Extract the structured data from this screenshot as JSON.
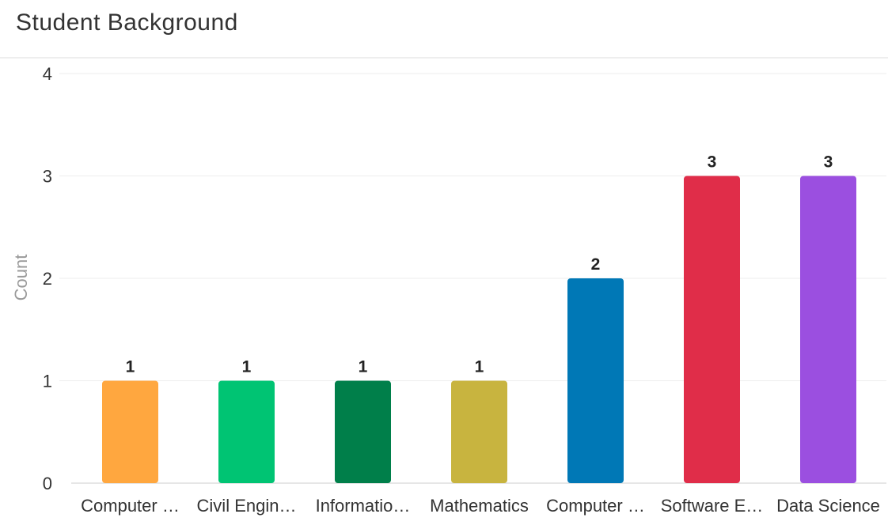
{
  "header": {
    "title": "Student Background"
  },
  "chart_data": {
    "type": "bar",
    "title": "Student Background",
    "xlabel": "",
    "ylabel": "Count",
    "ylim": [
      0,
      4
    ],
    "yticks": [
      0,
      1,
      2,
      3,
      4
    ],
    "grid": true,
    "legend": "none",
    "categories": [
      "Computer …",
      "Civil Engin…",
      "Informatio…",
      "Mathematics",
      "Computer …",
      "Software E…",
      "Data Science"
    ],
    "values": [
      1,
      1,
      1,
      1,
      2,
      3,
      3
    ],
    "data_labels": [
      "1",
      "1",
      "1",
      "1",
      "2",
      "3",
      "3"
    ],
    "colors": [
      "#FFA73F",
      "#00C473",
      "#007F4A",
      "#C8B43F",
      "#0078B6",
      "#E02D49",
      "#9B4FE0"
    ],
    "grid_color": "#eeeeee",
    "axis_color": "#e6e6e6"
  }
}
